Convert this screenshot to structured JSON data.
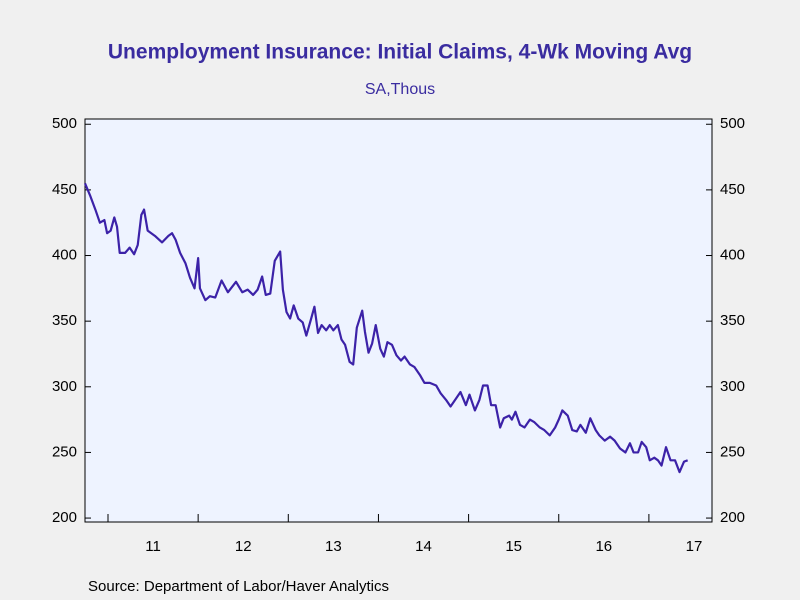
{
  "chart_data": {
    "type": "line",
    "title": "Unemployment Insurance: Initial Claims, 4-Wk Moving Avg",
    "subtitle": "SA,Thous",
    "source": "Source:  Department of Labor/Haver Analytics",
    "x": [
      2010.745,
      2010.8,
      2010.86,
      2010.91,
      2010.96,
      2010.99,
      2011.03,
      2011.07,
      2011.1,
      2011.13,
      2011.19,
      2011.24,
      2011.29,
      2011.33,
      2011.37,
      2011.4,
      2011.44,
      2011.52,
      2011.6,
      2011.67,
      2011.71,
      2011.75,
      2011.8,
      2011.86,
      2011.91,
      2011.96,
      2012.0,
      2012.02,
      2012.08,
      2012.13,
      2012.19,
      2012.26,
      2012.33,
      2012.42,
      2012.49,
      2012.55,
      2012.61,
      2012.66,
      2012.71,
      2012.75,
      2012.8,
      2012.85,
      2012.91,
      2012.94,
      2012.98,
      2013.02,
      2013.06,
      2013.11,
      2013.16,
      2013.2,
      2013.25,
      2013.29,
      2013.33,
      2013.37,
      2013.42,
      2013.46,
      2013.5,
      2013.55,
      2013.59,
      2013.63,
      2013.68,
      2013.72,
      2013.76,
      2013.82,
      2013.85,
      2013.89,
      2013.93,
      2013.97,
      2014.02,
      2014.06,
      2014.1,
      2014.15,
      2014.2,
      2014.25,
      2014.29,
      2014.35,
      2014.4,
      2014.46,
      2014.51,
      2014.57,
      2014.64,
      2014.69,
      2014.75,
      2014.8,
      2014.86,
      2014.91,
      2014.97,
      2015.01,
      2015.07,
      2015.12,
      2015.16,
      2015.21,
      2015.25,
      2015.3,
      2015.35,
      2015.39,
      2015.45,
      2015.48,
      2015.52,
      2015.57,
      2015.62,
      2015.68,
      2015.73,
      2015.79,
      2015.84,
      2015.9,
      2015.96,
      2016.0,
      2016.04,
      2016.1,
      2016.15,
      2016.2,
      2016.24,
      2016.3,
      2016.35,
      2016.41,
      2016.45,
      2016.51,
      2016.57,
      2016.62,
      2016.68,
      2016.74,
      2016.79,
      2016.83,
      2016.88,
      2016.92,
      2016.97,
      2017.01,
      2017.06,
      2017.1,
      2017.14,
      2017.19,
      2017.24,
      2017.29,
      2017.34,
      2017.39,
      2017.43
    ],
    "series": [
      {
        "color": "#3c22a8",
        "values": [
          455,
          446,
          435,
          425,
          427,
          417,
          419,
          429,
          422,
          402,
          402,
          406,
          401,
          408,
          431,
          435,
          419,
          415,
          410,
          415,
          417,
          412,
          402,
          394,
          383,
          375,
          398,
          375,
          366,
          369,
          368,
          381,
          372,
          380,
          372,
          374,
          370,
          374,
          384,
          370,
          371,
          396,
          403,
          374,
          357,
          352,
          362,
          352,
          349,
          339,
          351,
          361,
          341,
          347,
          343,
          347,
          343,
          347,
          336,
          332,
          319,
          317,
          345,
          358,
          342,
          326,
          333,
          347,
          329,
          323,
          334,
          332,
          324,
          320,
          323,
          317,
          315,
          309,
          303,
          303,
          301,
          295,
          290,
          285,
          291,
          296,
          286,
          294,
          282,
          290,
          301,
          301,
          286,
          286,
          269,
          276,
          278,
          275,
          281,
          271,
          269,
          275,
          273,
          269,
          267,
          263,
          269,
          275,
          282,
          278,
          267,
          266,
          271,
          265,
          276,
          267,
          263,
          259,
          262,
          259,
          253,
          250,
          257,
          250,
          250,
          258,
          254,
          244,
          246,
          244,
          240,
          254,
          244,
          244,
          235,
          243,
          244
        ]
      }
    ],
    "xlim": [
      2010.745,
      2017.7
    ],
    "xticks": [
      {
        "value": 2011,
        "label": "11"
      },
      {
        "value": 2012,
        "label": "12"
      },
      {
        "value": 2013,
        "label": "13"
      },
      {
        "value": 2014,
        "label": "14"
      },
      {
        "value": 2015,
        "label": "15"
      },
      {
        "value": 2016,
        "label": "16"
      },
      {
        "value": 2017,
        "label": "17"
      }
    ],
    "ylim": [
      197,
      504
    ],
    "yticks": [
      200,
      250,
      300,
      350,
      400,
      450,
      500
    ]
  }
}
